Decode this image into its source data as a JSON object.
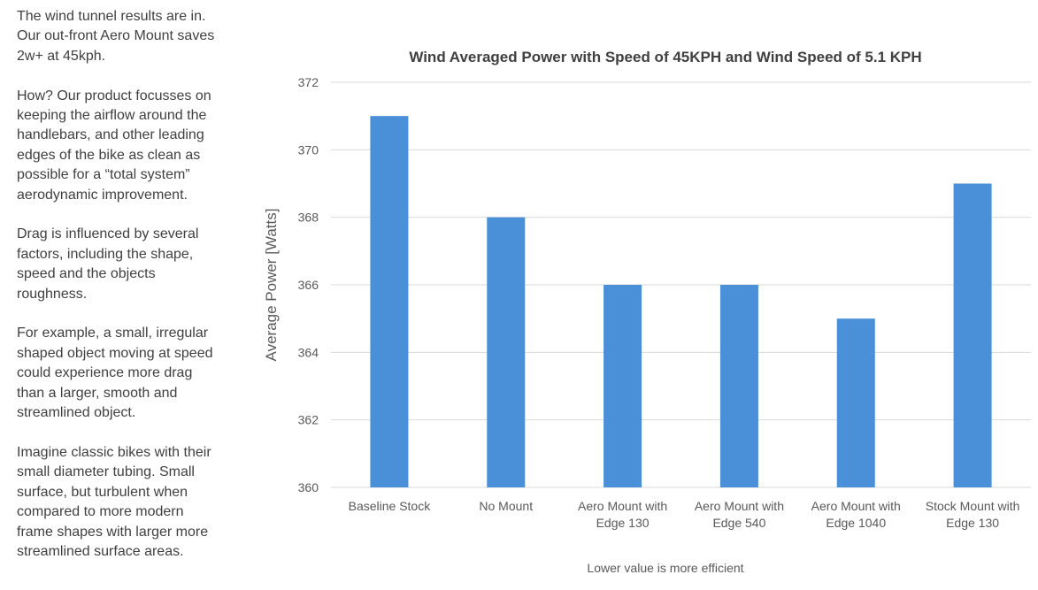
{
  "paragraphs": [
    [
      "The wind tunnel results are in.",
      "Our out-front Aero Mount saves",
      "2w+ at 45kph."
    ],
    [
      "How? Our product focusses on",
      "keeping the airflow around the",
      "handlebars, and other leading",
      "edges of the bike as clean as",
      "possible for a “total system”",
      "aerodynamic improvement."
    ],
    [
      "Drag is influenced by several",
      "factors, including the shape,",
      "speed and the objects",
      "roughness."
    ],
    [
      "For example, a small, irregular",
      "shaped object moving at speed",
      "could experience more drag",
      "than a larger, smooth and",
      "streamlined object."
    ],
    [
      "Imagine classic bikes with their",
      "small diameter tubing. Small",
      "surface, but turbulent when",
      "compared to more modern",
      "frame shapes with larger more",
      "streamlined surface areas."
    ]
  ],
  "chart_data": {
    "type": "bar",
    "title": "Wind Averaged Power with Speed of 45KPH and Wind Speed of 5.1 KPH",
    "xlabel": "Lower value is more efficient",
    "ylabel": "Average Power [Watts]",
    "categories": [
      [
        "Baseline Stock"
      ],
      [
        "No Mount"
      ],
      [
        "Aero Mount with",
        "Edge 130"
      ],
      [
        "Aero Mount with",
        "Edge 540"
      ],
      [
        "Aero Mount with",
        "Edge 1040"
      ],
      [
        "Stock Mount with",
        "Edge 130"
      ]
    ],
    "values": [
      371,
      368,
      366,
      366,
      365,
      369
    ],
    "ylim": [
      360,
      372
    ],
    "yticks": [
      "360",
      "362",
      "364",
      "366",
      "368",
      "370",
      "372"
    ],
    "grid": true,
    "bar_color": "#4a90d9",
    "grid_color": "#d9d9d9"
  }
}
